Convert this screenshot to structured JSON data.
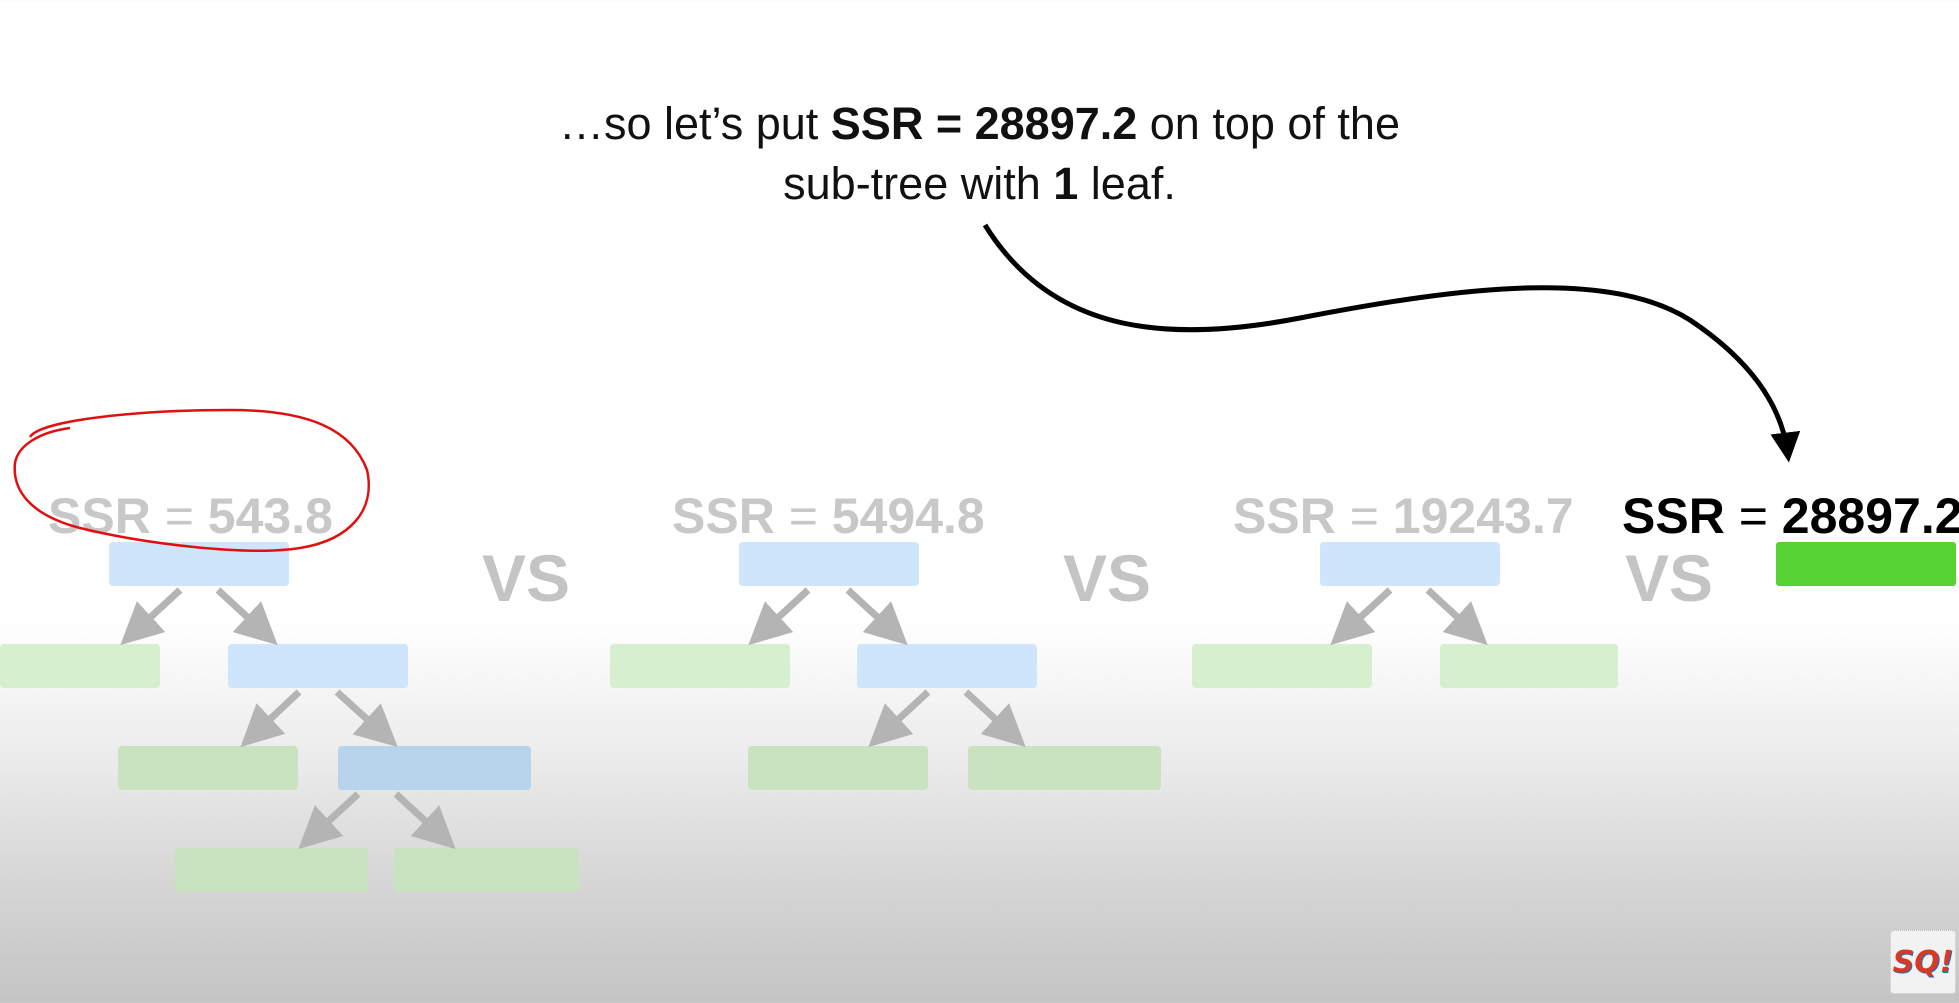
{
  "caption": {
    "line1_pre": "…so let’s put ",
    "line1_bold": "SSR = 28897.2",
    "line1_post": " on top of the",
    "line2_pre": "sub-tree with ",
    "line2_bold": "1",
    "line2_post": " leaf."
  },
  "trees": [
    {
      "ssr_label": "SSR",
      "eq": " = ",
      "ssr_value": "543.8",
      "leaves": 4
    },
    {
      "ssr_label": "SSR",
      "eq": " = ",
      "ssr_value": "5494.8",
      "leaves": 3
    },
    {
      "ssr_label": "SSR",
      "eq": " = ",
      "ssr_value": "19243.7",
      "leaves": 2
    },
    {
      "ssr_label": "SSR",
      "eq": " = ",
      "ssr_value": "28897.2",
      "leaves": 1
    }
  ],
  "vs_label": "VS",
  "highlighted_tree": 0,
  "colors": {
    "faded_text": "#c8c8c8",
    "internal_node": "#cfe5fb",
    "leaf_node": "#d6efcf",
    "single_leaf": "#57d233",
    "annotation_circle": "#e01010"
  },
  "logo_text": "SQ!"
}
